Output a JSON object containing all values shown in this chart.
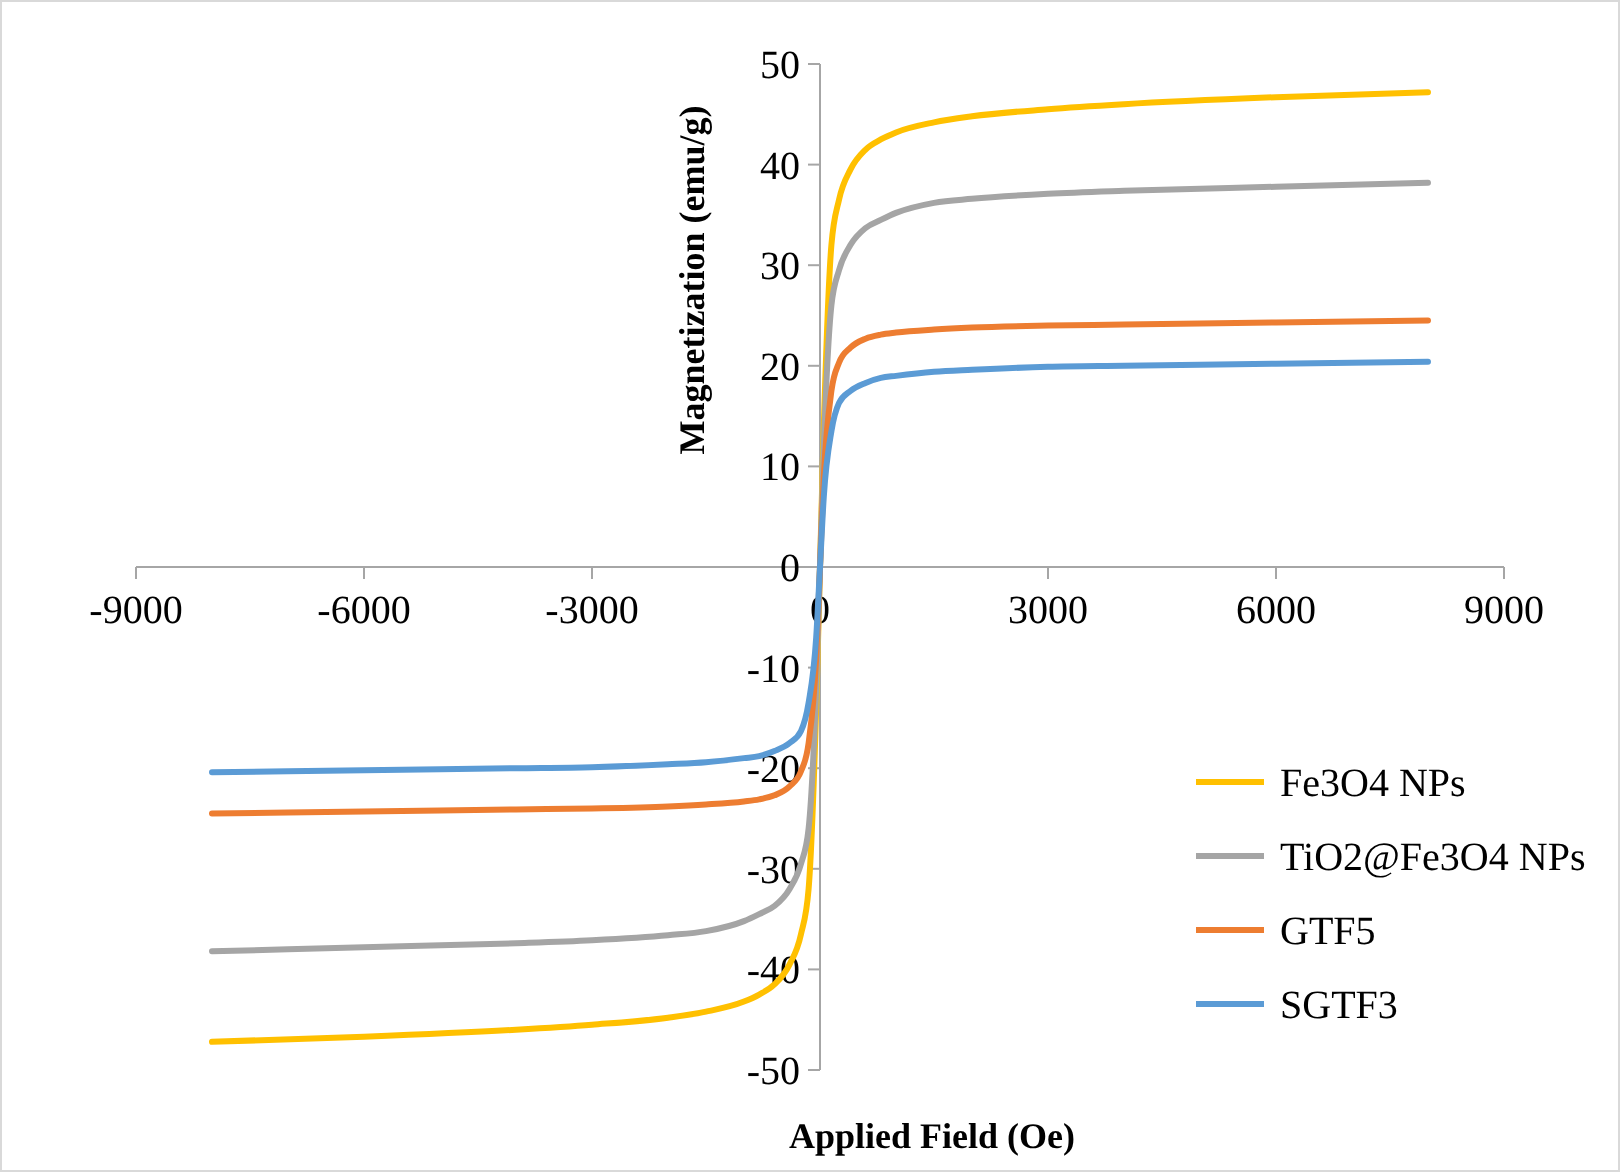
{
  "chart_data": {
    "type": "line",
    "xlabel": "Applied Field (Oe)",
    "ylabel": "Magnetization (emu/g)",
    "x": [
      -8000,
      -6000,
      -4000,
      -3000,
      -2000,
      -1500,
      -1000,
      -800,
      -600,
      -400,
      -250,
      -150,
      -50,
      0,
      50,
      150,
      250,
      400,
      600,
      800,
      1000,
      1500,
      2000,
      3000,
      4000,
      6000,
      8000
    ],
    "series": [
      {
        "name": "Fe3O4 NPs",
        "color": "#ffc000",
        "values": [
          -47.2,
          -46.7,
          -46,
          -45.5,
          -44.8,
          -44.2,
          -43.2,
          -42.5,
          -41.5,
          -39.5,
          -36.5,
          -32,
          -14,
          0,
          14,
          32,
          36.5,
          39.5,
          41.5,
          42.5,
          43.2,
          44.2,
          44.8,
          45.5,
          46,
          46.7,
          47.2
        ]
      },
      {
        "name": "TiO2@Fe3O4 NPs",
        "color": "#a5a5a5",
        "values": [
          -38.2,
          -37.8,
          -37.4,
          -37.1,
          -36.6,
          -36.2,
          -35.2,
          -34.5,
          -33.7,
          -32,
          -29.5,
          -26,
          -12,
          0,
          12,
          26,
          29.5,
          32,
          33.7,
          34.5,
          35.2,
          36.2,
          36.6,
          37.1,
          37.4,
          37.8,
          38.2
        ]
      },
      {
        "name": "GTF5",
        "color": "#ed7d31",
        "values": [
          -24.5,
          -24.3,
          -24.1,
          -24,
          -23.8,
          -23.6,
          -23.3,
          -23.1,
          -22.7,
          -21.8,
          -20.3,
          -17.5,
          -9,
          0,
          9,
          17.5,
          20.3,
          21.8,
          22.7,
          23.1,
          23.3,
          23.6,
          23.8,
          24,
          24.1,
          24.3,
          24.5
        ]
      },
      {
        "name": "SGTF3",
        "color": "#5b9bd5",
        "values": [
          -20.4,
          -20.2,
          -20,
          -19.9,
          -19.6,
          -19.4,
          -19,
          -18.8,
          -18.3,
          -17.5,
          -16.3,
          -13.5,
          -7,
          0,
          7,
          13.5,
          16.3,
          17.5,
          18.3,
          18.8,
          19,
          19.4,
          19.6,
          19.9,
          20,
          20.2,
          20.4
        ]
      }
    ],
    "xlim": [
      -9000,
      9000
    ],
    "xticks": [
      -9000,
      -6000,
      -3000,
      0,
      3000,
      6000,
      9000
    ],
    "ylim": [
      -50,
      50
    ],
    "yticks": [
      -50,
      -40,
      -30,
      -20,
      -10,
      0,
      10,
      20,
      30,
      40,
      50
    ],
    "grid": false,
    "legend": "bottom right",
    "marker": "none",
    "line_style": "solid"
  }
}
